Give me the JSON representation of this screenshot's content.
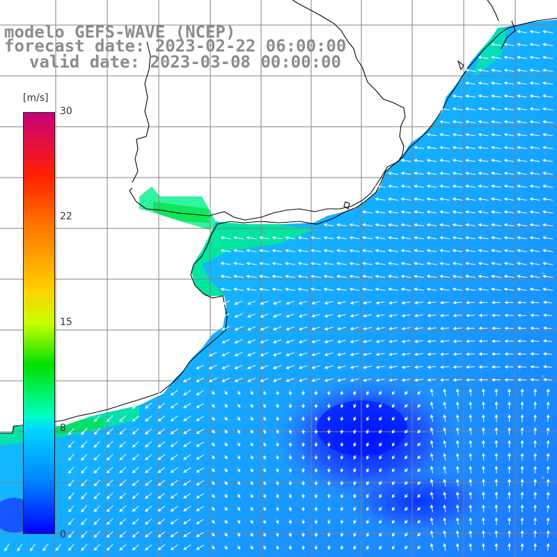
{
  "title": {
    "line1": "modelo GEFS-WAVE (NCEP)",
    "line2": "forecast date: 2023-02-22 06:00:00",
    "line3": "valid date: 2023-03-08 00:00:00"
  },
  "colorbar": {
    "unit": "[m/s]",
    "ticks": [
      "30",
      "22",
      "15",
      "8",
      "0"
    ],
    "tick_values": [
      30,
      22,
      15,
      8,
      0
    ],
    "colors": [
      "#c8007a",
      "#ff2000",
      "#ff6a00",
      "#ffd000",
      "#c8ff00",
      "#00e000",
      "#00ffc0",
      "#00d8ff",
      "#0080ff",
      "#0000ff"
    ]
  },
  "map": {
    "field": "wind speed with direction arrows",
    "land_color": "#ffffff",
    "grid_color": "#808080",
    "coastline_color": "#000000",
    "arrow_color": "#ffffff"
  }
}
